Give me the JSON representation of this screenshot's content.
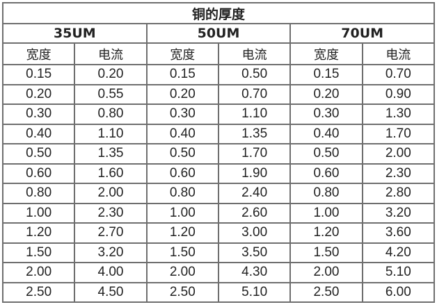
{
  "title": "铜的厚度",
  "thicknesses": [
    "35UM",
    "50UM",
    "70UM"
  ],
  "subheaders": [
    "宽度",
    "电流",
    "宽度",
    "电流",
    "宽度",
    "电流"
  ],
  "rows": [
    [
      "0.15",
      "0.20",
      "0.15",
      "0.50",
      "0.15",
      "0.70"
    ],
    [
      "0.20",
      "0.55",
      "0.20",
      "0.70",
      "0.20",
      "0.90"
    ],
    [
      "0.30",
      "0.80",
      "0.30",
      "1.10",
      "0.30",
      "1.30"
    ],
    [
      "0.40",
      "1.10",
      "0.40",
      "1.35",
      "0.40",
      "1.70"
    ],
    [
      "0.50",
      "1.35",
      "0.50",
      "1.70",
      "0.50",
      "2.00"
    ],
    [
      "0.60",
      "1.60",
      "0.60",
      "1.90",
      "0.60",
      "2.30"
    ],
    [
      "0.80",
      "2.00",
      "0.80",
      "2.40",
      "0.80",
      "2.80"
    ],
    [
      "1.00",
      "2.30",
      "1.00",
      "2.60",
      "1.00",
      "3.20"
    ],
    [
      "1.20",
      "2.70",
      "1.20",
      "3.00",
      "1.20",
      "3.60"
    ],
    [
      "1.50",
      "3.20",
      "1.50",
      "3.50",
      "1.50",
      "4.20"
    ],
    [
      "2.00",
      "4.00",
      "2.00",
      "4.30",
      "2.00",
      "5.10"
    ],
    [
      "2.50",
      "4.50",
      "2.50",
      "5.10",
      "2.50",
      "6.00"
    ]
  ]
}
